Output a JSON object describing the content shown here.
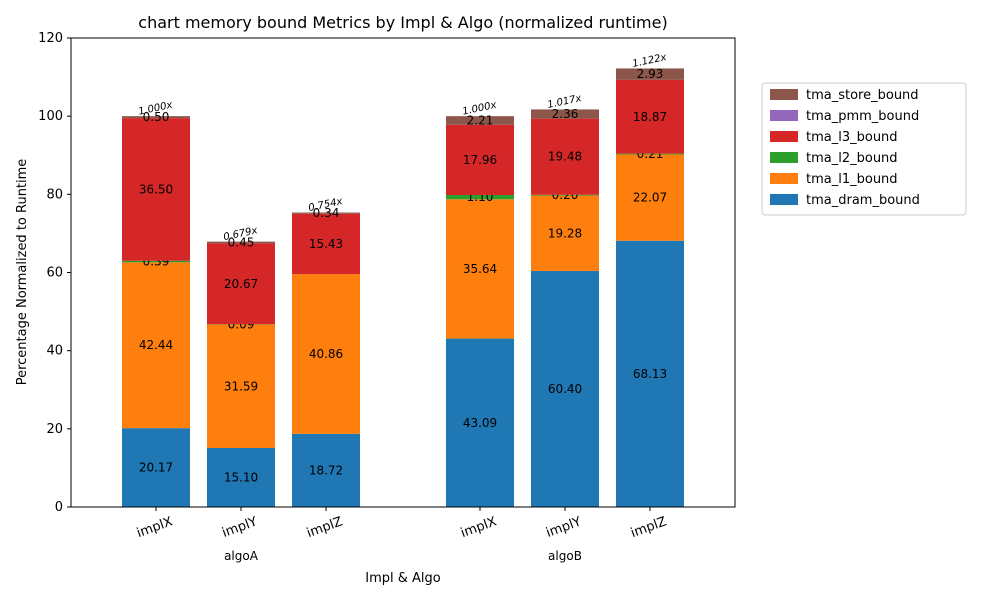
{
  "chart_data": {
    "type": "bar",
    "stacked": true,
    "title": "chart memory bound Metrics by Impl & Algo (normalized runtime)",
    "xlabel": "Impl & Algo",
    "ylabel": "Percentage Normalized to Runtime",
    "ylim": [
      0,
      120
    ],
    "yticks": [
      0,
      20,
      40,
      60,
      80,
      100,
      120
    ],
    "grid": false,
    "legend_position": "right",
    "groups": [
      {
        "name": "algoA",
        "categories": [
          "implX",
          "implY",
          "implZ"
        ],
        "ratios": [
          "1.000x",
          "0.679x",
          "0.754x"
        ]
      },
      {
        "name": "algoB",
        "categories": [
          "implX",
          "implY",
          "implZ"
        ],
        "ratios": [
          "1.000x",
          "1.017x",
          "1.122x"
        ]
      }
    ],
    "series": [
      {
        "name": "tma_dram_bound",
        "color": "#1f77b4",
        "values": [
          20.17,
          15.1,
          18.72,
          43.09,
          60.4,
          68.13
        ],
        "labels": [
          "20.17",
          "15.10",
          "18.72",
          "43.09",
          "60.40",
          "68.13"
        ]
      },
      {
        "name": "tma_l1_bound",
        "color": "#ff7f0e",
        "values": [
          42.44,
          31.59,
          40.86,
          35.64,
          19.28,
          22.07
        ],
        "labels": [
          "42.44",
          "31.59",
          "40.86",
          "35.64",
          "19.28",
          "22.07"
        ]
      },
      {
        "name": "tma_l2_bound",
        "color": "#2ca02c",
        "values": [
          0.39,
          0.09,
          0.0,
          1.1,
          0.2,
          0.21
        ],
        "labels": [
          "0.39",
          "0.09",
          "",
          "1.10",
          "0.20",
          "0.21"
        ]
      },
      {
        "name": "tma_l3_bound",
        "color": "#d62728",
        "values": [
          36.5,
          20.67,
          15.43,
          17.96,
          19.48,
          18.87
        ],
        "labels": [
          "36.50",
          "20.67",
          "15.43",
          "17.96",
          "19.48",
          "18.87"
        ]
      },
      {
        "name": "tma_pmm_bound",
        "color": "#9467bd",
        "values": [
          0,
          0,
          0,
          0,
          0,
          0
        ],
        "labels": [
          "",
          "",
          "",
          "",
          "",
          ""
        ]
      },
      {
        "name": "tma_store_bound",
        "color": "#8c564b",
        "values": [
          0.5,
          0.45,
          0.34,
          2.21,
          2.36,
          2.93
        ],
        "labels": [
          "0.50",
          "0.45",
          "0.34",
          "2.21",
          "2.36",
          "2.93"
        ]
      }
    ]
  }
}
